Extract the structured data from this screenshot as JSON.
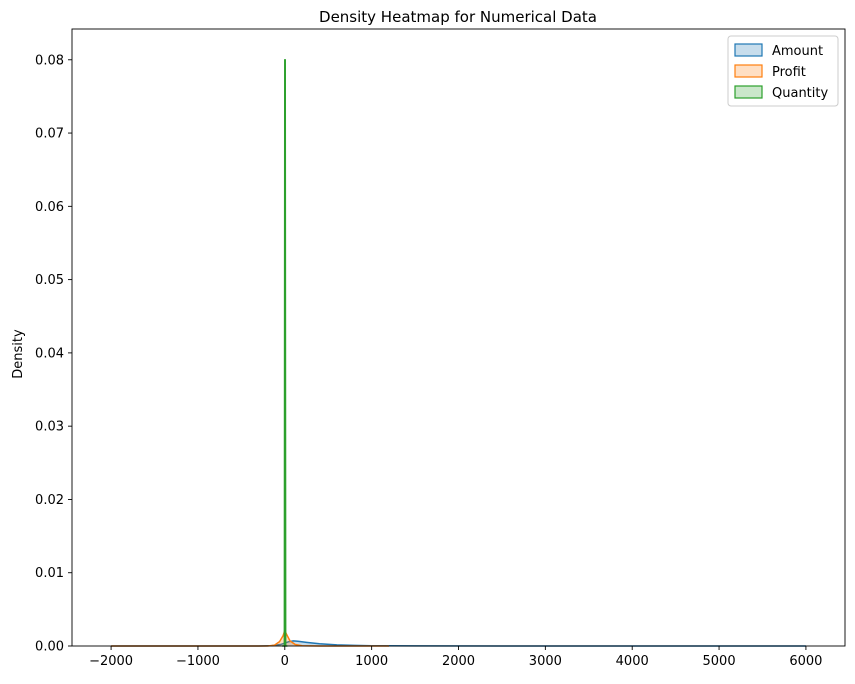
{
  "chart_data": {
    "type": "area",
    "title": "Density Heatmap for Numerical Data",
    "xlabel": "",
    "ylabel": "Density",
    "xlim": [
      -2450,
      6450
    ],
    "ylim": [
      0,
      0.0842
    ],
    "xticks": [
      -2000,
      -1000,
      0,
      1000,
      2000,
      3000,
      4000,
      5000,
      6000
    ],
    "xtick_labels": [
      "−2000",
      "−1000",
      "0",
      "1000",
      "2000",
      "3000",
      "4000",
      "5000",
      "6000"
    ],
    "yticks": [
      0,
      0.01,
      0.02,
      0.03,
      0.04,
      0.05,
      0.06,
      0.07,
      0.08
    ],
    "ytick_labels": [
      "0.00",
      "0.01",
      "0.02",
      "0.03",
      "0.04",
      "0.05",
      "0.06",
      "0.07",
      "0.08"
    ],
    "grid": false,
    "legend_position": "top-right",
    "series": [
      {
        "name": "Amount",
        "color": "#1f77b4",
        "points": [
          [
            -2000,
            0
          ],
          [
            -300,
            0
          ],
          [
            -150,
            5e-05
          ],
          [
            -50,
            0.0002
          ],
          [
            0,
            0.0004
          ],
          [
            50,
            0.0006
          ],
          [
            100,
            0.0007
          ],
          [
            150,
            0.00065
          ],
          [
            250,
            0.0005
          ],
          [
            400,
            0.0003
          ],
          [
            600,
            0.00015
          ],
          [
            800,
            8e-05
          ],
          [
            1000,
            4e-05
          ],
          [
            1500,
            1e-05
          ],
          [
            2500,
            0
          ],
          [
            6000,
            0
          ]
        ]
      },
      {
        "name": "Profit",
        "color": "#ff7f0e",
        "points": [
          [
            -2000,
            0
          ],
          [
            -200,
            0
          ],
          [
            -120,
            0.0001
          ],
          [
            -60,
            0.0006
          ],
          [
            -20,
            0.0014
          ],
          [
            0,
            0.0021
          ],
          [
            20,
            0.0016
          ],
          [
            60,
            0.0007
          ],
          [
            120,
            0.0002
          ],
          [
            200,
            3e-05
          ],
          [
            400,
            0
          ],
          [
            1200,
            0
          ]
        ]
      },
      {
        "name": "Quantity",
        "color": "#2ca02c",
        "points": [
          [
            -30,
            0
          ],
          [
            -5,
            0
          ],
          [
            0,
            0.08
          ],
          [
            5,
            0.08
          ],
          [
            10,
            0
          ],
          [
            30,
            0
          ]
        ]
      }
    ]
  }
}
